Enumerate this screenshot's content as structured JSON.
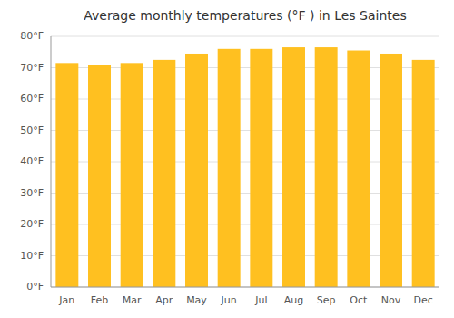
{
  "chart_data": {
    "type": "bar",
    "title": "Average monthly temperatures (°F ) in Les Saintes",
    "categories": [
      "Jan",
      "Feb",
      "Mar",
      "Apr",
      "May",
      "Jun",
      "Jul",
      "Aug",
      "Sep",
      "Oct",
      "Nov",
      "Dec"
    ],
    "values": [
      71.5,
      71.0,
      71.5,
      72.5,
      74.5,
      76.0,
      76.0,
      76.5,
      76.5,
      75.5,
      74.5,
      72.5
    ],
    "color": "#FFC020",
    "ylim": [
      0,
      80
    ],
    "yticks": [
      {
        "value": 0,
        "label": "0°F"
      },
      {
        "value": 10,
        "label": "10°F"
      },
      {
        "value": 20,
        "label": "20°F"
      },
      {
        "value": 30,
        "label": "30°F"
      },
      {
        "value": 40,
        "label": "40°F"
      },
      {
        "value": 50,
        "label": "50°F"
      },
      {
        "value": 60,
        "label": "60°F"
      },
      {
        "value": 70,
        "label": "70°F"
      },
      {
        "value": 80,
        "label": "80°F"
      }
    ],
    "grid": true
  }
}
